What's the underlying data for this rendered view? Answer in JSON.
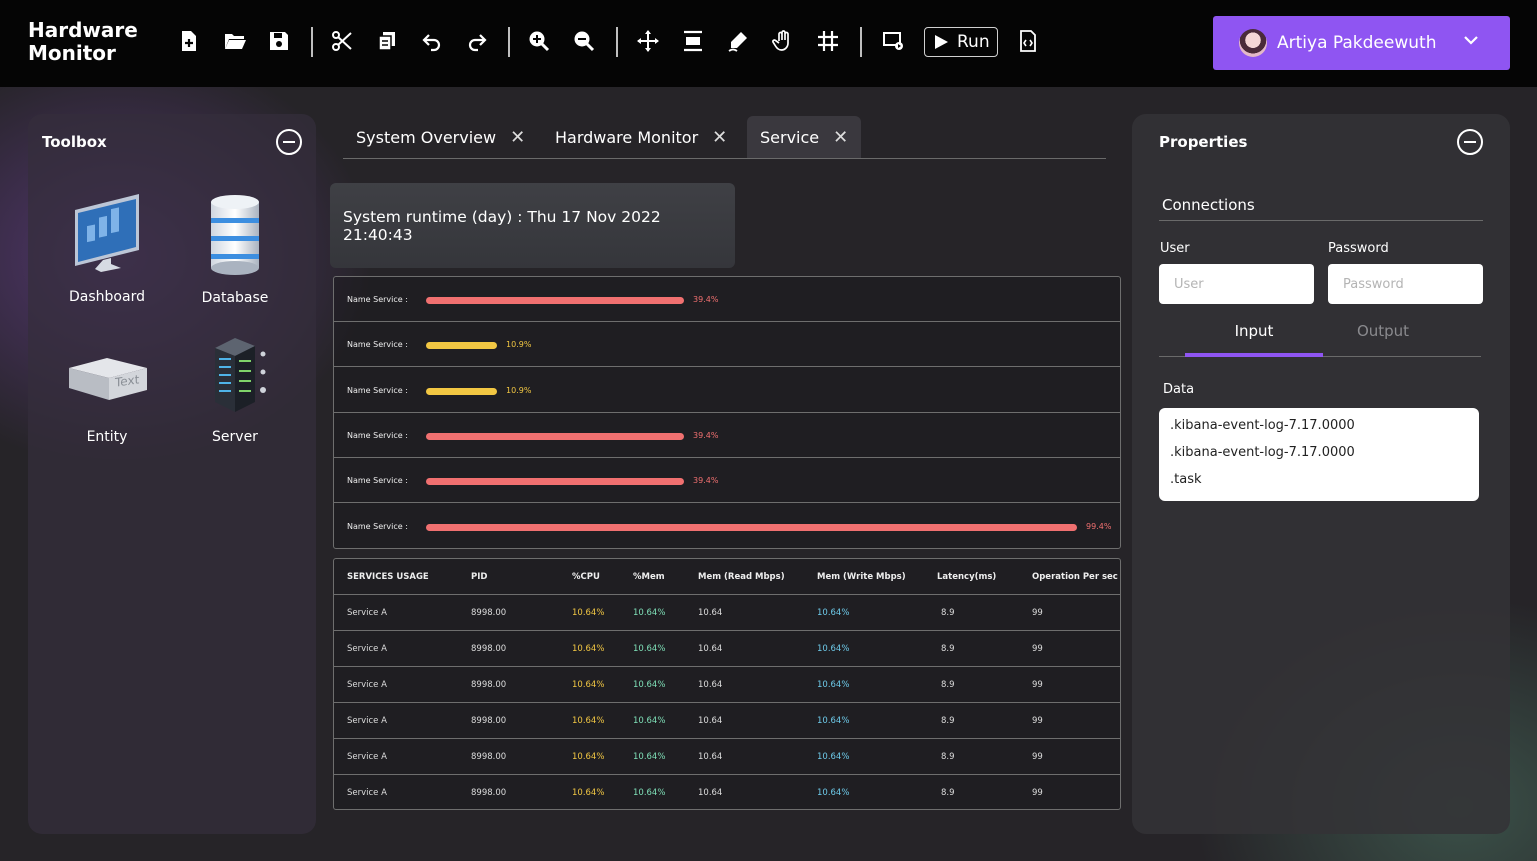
{
  "app": {
    "title_line1": "Hardware",
    "title_line2": "Monitor"
  },
  "toolbar": {
    "icons": [
      "new-file-icon",
      "open-folder-icon",
      "save-icon",
      "cut-icon",
      "copy-icon",
      "undo-icon",
      "redo-icon",
      "zoom-in-icon",
      "zoom-out-icon",
      "move-icon",
      "align-icon",
      "pen-icon",
      "hand-icon",
      "grid-icon",
      "present-icon",
      "code-icon"
    ],
    "run_label": "Run"
  },
  "user": {
    "name": "Artiya Pakdeewuth"
  },
  "toolbox": {
    "title": "Toolbox",
    "items": [
      {
        "label": "Dashboard"
      },
      {
        "label": "Database"
      },
      {
        "label": "Entity",
        "icon_text": "Text"
      },
      {
        "label": "Server"
      }
    ]
  },
  "tabs": [
    {
      "label": "System Overview"
    },
    {
      "label": "Hardware Monitor"
    },
    {
      "label": "Service"
    }
  ],
  "runtime": {
    "text": "System runtime (day) : Thu 17 Nov 2022 21:40:43"
  },
  "bars": [
    {
      "label": "Name Service :",
      "value": 39.4,
      "display": "39.4%",
      "color": "#f07070"
    },
    {
      "label": "Name Service :",
      "value": 10.9,
      "display": "10.9%",
      "color": "#f2c743"
    },
    {
      "label": "Name Service :",
      "value": 10.9,
      "display": "10.9%",
      "color": "#f2c743"
    },
    {
      "label": "Name Service :",
      "value": 39.4,
      "display": "39.4%",
      "color": "#f07070"
    },
    {
      "label": "Name Service :",
      "value": 39.4,
      "display": "39.4%",
      "color": "#f07070"
    },
    {
      "label": "Name Service :",
      "value": 99.4,
      "display": "99.4%",
      "color": "#f07070"
    }
  ],
  "table": {
    "headers": [
      "SERVICES USAGE",
      "PID",
      "%CPU",
      "%Mem",
      "Mem (Read Mbps)",
      "Mem (Write Mbps)",
      "Latency(ms)",
      "Operation Per sec"
    ],
    "rows": [
      [
        "Service A",
        "8998.00",
        "10.64%",
        "10.64%",
        "10.64",
        "10.64%",
        "8.9",
        "99"
      ],
      [
        "Service A",
        "8998.00",
        "10.64%",
        "10.64%",
        "10.64",
        "10.64%",
        "8.9",
        "99"
      ],
      [
        "Service A",
        "8998.00",
        "10.64%",
        "10.64%",
        "10.64",
        "10.64%",
        "8.9",
        "99"
      ],
      [
        "Service A",
        "8998.00",
        "10.64%",
        "10.64%",
        "10.64",
        "10.64%",
        "8.9",
        "99"
      ],
      [
        "Service A",
        "8998.00",
        "10.64%",
        "10.64%",
        "10.64",
        "10.64%",
        "8.9",
        "99"
      ],
      [
        "Service A",
        "8998.00",
        "10.64%",
        "10.64%",
        "10.64",
        "10.64%",
        "8.9",
        "99"
      ]
    ],
    "cell_colors": [
      "#dddddd",
      "#dddddd",
      "#f2c743",
      "#7fe0b8",
      "#dddddd",
      "#6ecbea",
      "#dddddd",
      "#dddddd"
    ]
  },
  "properties": {
    "title": "Properties",
    "connections_title": "Connections",
    "user_label": "User",
    "user_placeholder": "User",
    "password_label": "Password",
    "password_placeholder": "Password",
    "input_tab": "Input",
    "output_tab": "Output",
    "data_label": "Data",
    "data_lines": [
      ".kibana-event-log-7.17.0000",
      ".kibana-event-log-7.17.0000",
      ".task"
    ]
  },
  "colors": {
    "accent": "#8f55f2",
    "bar_red": "#f07070",
    "bar_yellow": "#f2c743"
  }
}
